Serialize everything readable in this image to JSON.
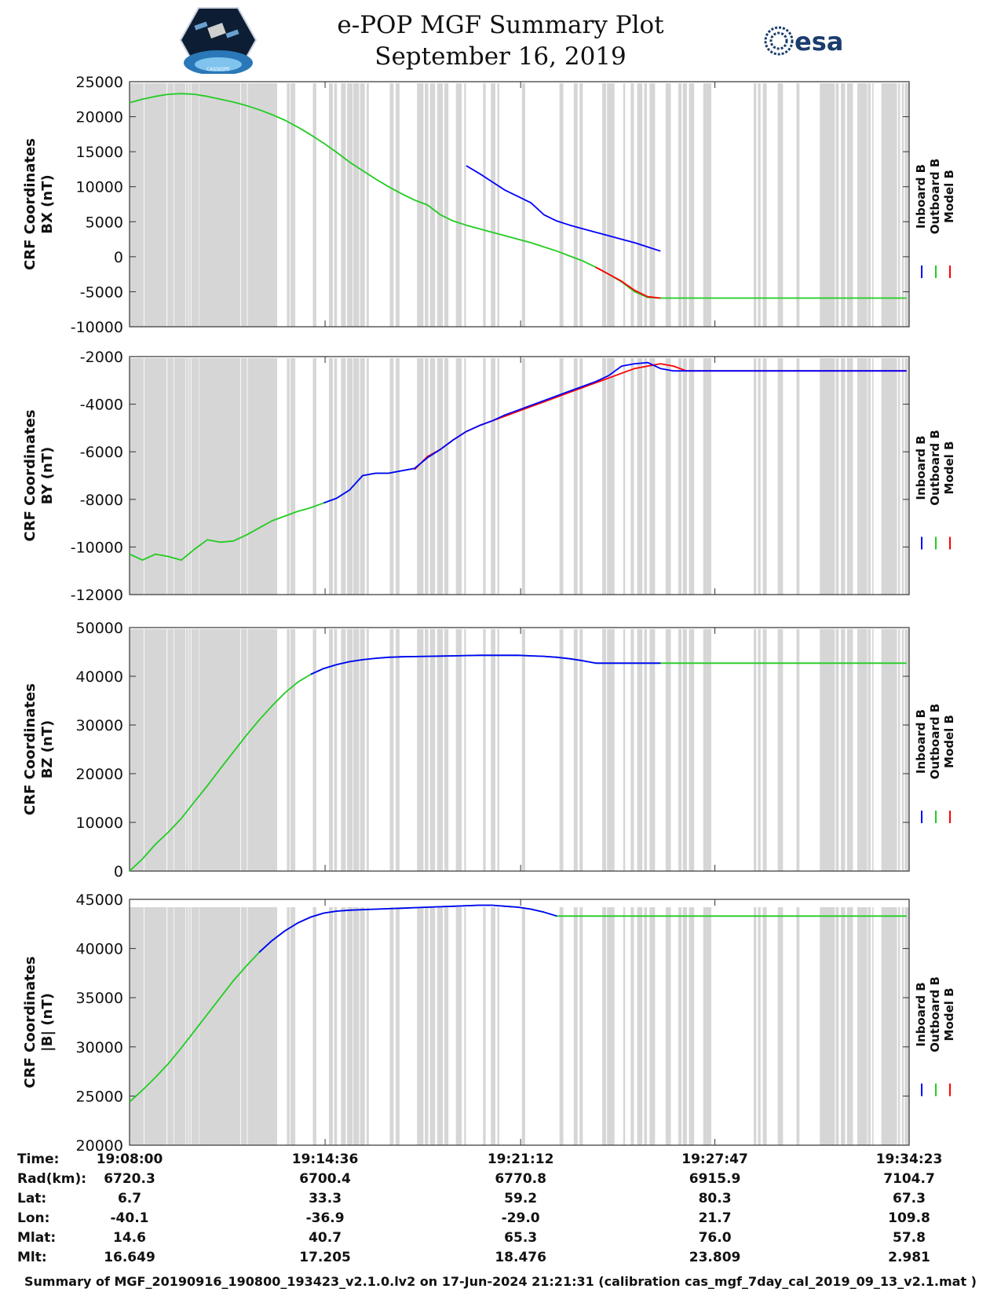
{
  "header": {
    "title": "e-POP MGF Summary Plot",
    "date": "September 16, 2019",
    "logo_left": "CASSIOPE",
    "logo_right": "esa"
  },
  "colors": {
    "inboard": "#0000ff",
    "outboard": "#22cc22",
    "model": "#ff0000",
    "shade": "#d6d6d6"
  },
  "legend": [
    "Inboard B",
    "Outboard B",
    "Model B"
  ],
  "gaps": [
    [
      0,
      1.1
    ],
    [
      1.15,
      2.86
    ],
    [
      2.92,
      3.4
    ],
    [
      3.44,
      4.32
    ],
    [
      4.36,
      4.52
    ],
    [
      4.57,
      4.72
    ],
    [
      4.77,
      5.35
    ],
    [
      5.38,
      8.55
    ],
    [
      8.6,
      9.07
    ],
    [
      9.12,
      11.4
    ],
    [
      12.15,
      12.36
    ],
    [
      12.42,
      12.8
    ],
    [
      14.16,
      14.42
    ],
    [
      15.4,
      15.7
    ],
    [
      15.8,
      16.02
    ],
    [
      16.33,
      16.7
    ],
    [
      16.8,
      17.23
    ],
    [
      17.28,
      17.73
    ],
    [
      17.8,
      18.17
    ],
    [
      18.3,
      18.48
    ],
    [
      20.1,
      20.39
    ],
    [
      20.55,
      20.85
    ],
    [
      22.2,
      22.7
    ],
    [
      22.8,
      23.07
    ],
    [
      23.2,
      23.6
    ],
    [
      23.75,
      24.19
    ],
    [
      24.31,
      24.62
    ],
    [
      25.2,
      25.65
    ],
    [
      25.84,
      25.98
    ],
    [
      27.3,
      27.5
    ],
    [
      27.9,
      28.25
    ],
    [
      28.4,
      28.55
    ],
    [
      30.3,
      30.55
    ],
    [
      33.2,
      33.5
    ],
    [
      34.3,
      34.6
    ],
    [
      34.75,
      35.0
    ],
    [
      36.5,
      36.8
    ],
    [
      36.87,
      37.45
    ],
    [
      38.12,
      38.27
    ],
    [
      38.7,
      38.95
    ],
    [
      39.2,
      39.6
    ],
    [
      39.74,
      39.96
    ],
    [
      40.15,
      40.58
    ],
    [
      41.4,
      41.8
    ],
    [
      42.38,
      42.62
    ],
    [
      42.72,
      43.04
    ],
    [
      43.2,
      43.6
    ],
    [
      44.3,
      44.92
    ],
    [
      48.2,
      48.4
    ],
    [
      48.53,
      48.73
    ],
    [
      48.9,
      49.2
    ],
    [
      50.05,
      50.46
    ],
    [
      51.5,
      51.73
    ],
    [
      53.3,
      54.46
    ],
    [
      54.53,
      54.77
    ],
    [
      54.93,
      55.26
    ],
    [
      55.4,
      55.86
    ],
    [
      56.2,
      56.96
    ],
    [
      57.01,
      57.23
    ],
    [
      57.35,
      57.45
    ],
    [
      58.05,
      59.26
    ],
    [
      59.34,
      59.5
    ],
    [
      59.64,
      59.79
    ],
    [
      59.87,
      60.2
    ]
  ],
  "chart_data": [
    {
      "type": "line",
      "ylabel": [
        "CRF Coordinates",
        "BX (nT)"
      ],
      "ylim": [
        -10000,
        25000
      ],
      "yticks": [
        -10000,
        -5000,
        0,
        5000,
        10000,
        15000,
        20000,
        25000
      ],
      "series": [
        {
          "name": "Outboard B",
          "x": [
            0,
            1,
            2,
            3,
            4,
            5,
            6,
            7,
            8,
            9,
            10,
            11,
            12,
            13,
            14,
            15,
            16,
            17,
            18,
            19,
            20,
            21,
            22,
            23,
            24,
            25,
            26,
            27,
            28,
            29,
            30,
            31,
            32,
            33,
            34,
            35,
            36,
            37,
            38,
            39,
            40,
            41,
            42,
            43,
            44,
            45,
            46,
            47,
            48,
            49,
            50,
            51,
            52,
            53,
            54,
            55,
            56,
            57,
            58,
            59,
            60
          ],
          "values": [
            22000,
            22500,
            22900,
            23200,
            23300,
            23200,
            22900,
            22500,
            22100,
            21600,
            21000,
            20300,
            19500,
            18500,
            17400,
            16200,
            14900,
            13500,
            12300,
            11100,
            10000,
            9000,
            8100,
            7400,
            6000,
            5100,
            4500,
            4000,
            3500,
            3000,
            2500,
            2000,
            1400,
            800,
            100,
            -600,
            -1500,
            -2500,
            -3600,
            -5000,
            -5800,
            -5900,
            -5900,
            -5900,
            -5900,
            -5900,
            -5900,
            -5900,
            -5900,
            -5900,
            -5900,
            -5900,
            -5900,
            -5900,
            -5900,
            -5900,
            -5900,
            -5900,
            -5900,
            -5900,
            -5900
          ]
        },
        {
          "name": "Model B",
          "x": [
            36,
            37,
            38,
            39,
            40,
            41
          ],
          "values": [
            -1500,
            -2500,
            -3500,
            -4800,
            -5700,
            -5900
          ]
        },
        {
          "name": "Inboard B",
          "x": [
            26,
            27,
            28,
            29,
            30,
            31,
            32,
            33,
            34,
            35,
            36,
            37,
            38,
            39,
            40,
            41
          ],
          "values": [
            13000,
            11900,
            10700,
            9500,
            8600,
            7700,
            6000,
            5100,
            4500,
            4000,
            3500,
            3000,
            2500,
            2000,
            1400,
            800
          ]
        }
      ]
    },
    {
      "type": "line",
      "ylabel": [
        "CRF Coordinates",
        "BY (nT)"
      ],
      "ylim": [
        -12000,
        -2000
      ],
      "yticks": [
        -12000,
        -10000,
        -8000,
        -6000,
        -4000,
        -2000
      ],
      "series": [
        {
          "name": "Outboard B",
          "x": [
            0,
            1,
            2,
            3,
            4,
            5,
            6,
            7,
            8,
            9,
            10,
            11,
            12,
            13,
            14,
            15,
            16,
            17,
            18,
            19,
            20,
            21,
            22,
            23,
            24,
            25
          ],
          "values": [
            -10300,
            -10550,
            -10300,
            -10400,
            -10550,
            -10100,
            -9700,
            -9800,
            -9750,
            -9500,
            -9200,
            -8900,
            -8700,
            -8500,
            -8350,
            -8150,
            -7950,
            -7600,
            -7000,
            -6900,
            -6900,
            -6800,
            -6700,
            -6250,
            -5900,
            -5500
          ]
        },
        {
          "name": "Model B",
          "x": [
            22,
            23,
            24,
            25,
            26,
            27,
            28,
            29,
            30,
            31,
            32,
            33,
            34,
            35,
            36,
            37,
            38,
            39,
            40,
            41,
            42,
            43,
            44,
            45,
            46,
            47,
            48,
            49,
            50,
            51,
            52,
            53,
            54,
            55,
            56,
            57,
            58,
            59,
            60
          ],
          "values": [
            -6750,
            -6200,
            -5900,
            -5500,
            -5150,
            -4900,
            -4700,
            -4500,
            -4300,
            -4100,
            -3900,
            -3700,
            -3500,
            -3300,
            -3100,
            -2900,
            -2700,
            -2500,
            -2400,
            -2300,
            -2400,
            -2600,
            -2600,
            -2600,
            -2600,
            -2600,
            -2600,
            -2600,
            -2600,
            -2600,
            -2600,
            -2600,
            -2600,
            -2600,
            -2600,
            -2600,
            -2600,
            -2600,
            -2600
          ]
        },
        {
          "name": "Inboard B",
          "x": [
            15,
            16,
            17,
            18,
            19,
            20,
            21,
            22,
            23,
            24,
            25,
            26,
            27,
            28,
            29,
            30,
            31,
            32,
            33,
            34,
            35,
            36,
            37,
            38,
            39,
            40,
            41,
            42,
            43,
            44,
            45,
            46,
            47,
            48,
            49,
            50,
            51,
            52,
            53,
            54,
            55,
            56,
            57,
            58,
            59,
            60
          ],
          "values": [
            -8150,
            -7950,
            -7600,
            -7000,
            -6900,
            -6900,
            -6800,
            -6700,
            -6250,
            -5900,
            -5500,
            -5150,
            -4900,
            -4700,
            -4450,
            -4250,
            -4050,
            -3850,
            -3650,
            -3450,
            -3250,
            -3050,
            -2800,
            -2400,
            -2300,
            -2250,
            -2500,
            -2600,
            -2600,
            -2600,
            -2600,
            -2600,
            -2600,
            -2600,
            -2600,
            -2600,
            -2600,
            -2600,
            -2600,
            -2600,
            -2600,
            -2600,
            -2600,
            -2600,
            -2600,
            -2600
          ]
        }
      ]
    },
    {
      "type": "line",
      "ylabel": [
        "CRF Coordinates",
        "BZ (nT)"
      ],
      "ylim": [
        0,
        50000
      ],
      "yticks": [
        0,
        10000,
        20000,
        30000,
        40000,
        50000
      ],
      "series": [
        {
          "name": "Outboard B",
          "x": [
            0,
            1,
            2,
            3,
            4,
            5,
            6,
            7,
            8,
            9,
            10,
            11,
            12,
            13,
            14,
            15,
            16,
            17,
            18,
            19,
            20,
            21,
            22,
            23,
            24,
            25,
            26,
            27,
            28,
            29,
            30,
            31,
            32,
            33,
            34,
            35,
            36,
            37,
            38,
            39,
            40,
            41,
            42,
            43,
            44,
            45,
            46,
            47,
            48,
            49,
            50,
            51,
            52,
            53,
            54,
            55,
            56,
            57,
            58,
            59,
            60
          ],
          "values": [
            0,
            2500,
            5500,
            8000,
            10800,
            14200,
            17500,
            21000,
            24400,
            27800,
            31000,
            33900,
            36600,
            38800,
            40400,
            41600,
            42400,
            43000,
            43400,
            43700,
            43900,
            44000,
            44050,
            44100,
            44150,
            44200,
            44250,
            44300,
            44300,
            44300,
            44300,
            44200,
            44100,
            43900,
            43600,
            43200,
            42700,
            42700,
            42700,
            42700,
            42700,
            42700,
            42700,
            42700,
            42700,
            42700,
            42700,
            42700,
            42700,
            42700,
            42700,
            42700,
            42700,
            42700,
            42700,
            42700,
            42700,
            42700,
            42700,
            42700,
            42700
          ]
        },
        {
          "name": "Inboard B",
          "x": [
            14,
            15,
            16,
            17,
            18,
            19,
            20,
            21,
            22,
            23,
            24,
            25,
            26,
            27,
            28,
            29,
            30,
            31,
            32,
            33,
            34,
            35,
            36,
            37,
            38,
            39,
            40,
            41
          ],
          "values": [
            40400,
            41600,
            42400,
            43000,
            43400,
            43700,
            43900,
            44000,
            44050,
            44100,
            44150,
            44200,
            44250,
            44300,
            44300,
            44300,
            44300,
            44200,
            44100,
            43900,
            43600,
            43200,
            42700,
            42700,
            42700,
            42700,
            42700,
            42700
          ]
        }
      ]
    },
    {
      "type": "line",
      "ylabel": [
        "CRF Coordinates",
        "|B| (nT)"
      ],
      "ylim": [
        20000,
        45000
      ],
      "yticks": [
        20000,
        25000,
        30000,
        35000,
        40000,
        45000
      ],
      "series": [
        {
          "name": "Outboard B",
          "x": [
            0,
            1,
            2,
            3,
            4,
            5,
            6,
            7,
            8,
            9,
            10,
            11,
            12,
            13,
            14,
            15,
            16,
            17,
            18,
            19,
            20,
            21,
            22,
            23,
            24,
            25,
            26,
            27,
            28,
            29,
            30,
            31,
            32,
            33,
            34,
            35,
            36,
            37,
            38,
            39,
            40,
            41,
            42,
            43,
            44,
            45,
            46,
            47,
            48,
            49,
            50,
            51,
            52,
            53,
            54,
            55,
            56,
            57,
            58,
            59,
            60
          ],
          "values": [
            24400,
            25600,
            26900,
            28300,
            29900,
            31600,
            33300,
            35000,
            36700,
            38200,
            39600,
            40800,
            41800,
            42600,
            43200,
            43600,
            43800,
            43900,
            43950,
            44000,
            44050,
            44100,
            44150,
            44200,
            44250,
            44300,
            44350,
            44400,
            44400,
            44300,
            44200,
            44000,
            43700,
            43300,
            43300,
            43300,
            43300,
            43300,
            43300,
            43300,
            43300,
            43300,
            43300,
            43300,
            43300,
            43300,
            43300,
            43300,
            43300,
            43300,
            43300,
            43300,
            43300,
            43300,
            43300,
            43300,
            43300,
            43300,
            43300,
            43300,
            43300
          ]
        },
        {
          "name": "Inboard B",
          "x": [
            10,
            11,
            12,
            13,
            14,
            15,
            16,
            17,
            18,
            19,
            20,
            21,
            22,
            23,
            24,
            25,
            26,
            27,
            28,
            29,
            30,
            31,
            32,
            33
          ],
          "values": [
            39600,
            40800,
            41800,
            42600,
            43200,
            43600,
            43800,
            43900,
            43950,
            44000,
            44050,
            44100,
            44150,
            44200,
            44250,
            44300,
            44350,
            44400,
            44400,
            44300,
            44200,
            44000,
            43700,
            43300
          ]
        }
      ]
    }
  ],
  "info": {
    "labels": [
      "Time:",
      "Rad(km):",
      "Lat:",
      "Lon:",
      "Mlat:",
      "Mlt:"
    ],
    "columns": [
      [
        "19:08:00",
        "6720.3",
        "6.7",
        "-40.1",
        "14.6",
        "16.649"
      ],
      [
        "19:14:36",
        "6700.4",
        "33.3",
        "-36.9",
        "40.7",
        "17.205"
      ],
      [
        "19:21:12",
        "6770.8",
        "59.2",
        "-29.0",
        "65.3",
        "18.476"
      ],
      [
        "19:27:47",
        "6915.9",
        "80.3",
        "21.7",
        "76.0",
        "23.809"
      ],
      [
        "19:34:23",
        "7104.7",
        "67.3",
        "109.8",
        "57.8",
        "2.981"
      ]
    ]
  },
  "footer": "Summary of MGF_20190916_190800_193423_v2.1.0.lv2 on 17-Jun-2024 21:21:31 (calibration cas_mgf_7day_cal_2019_09_13_v2.1.mat )"
}
